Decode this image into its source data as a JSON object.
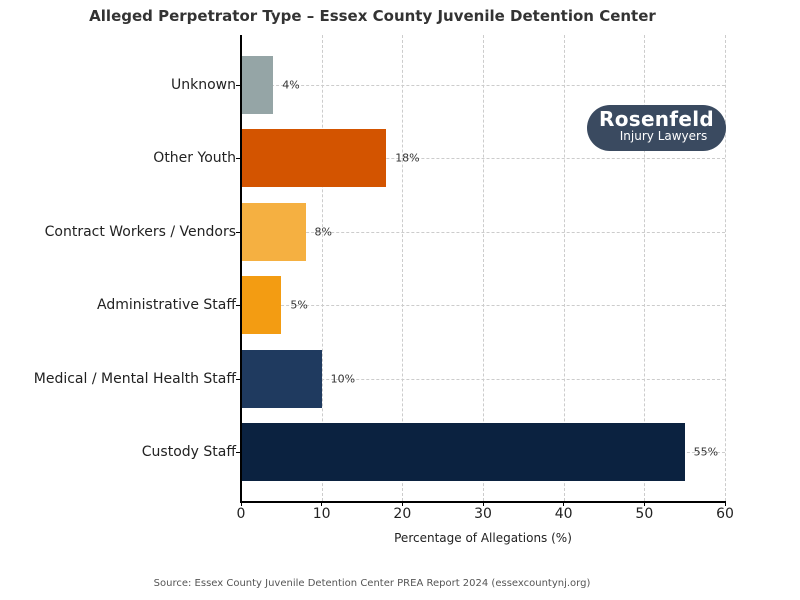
{
  "chart_data": {
    "type": "bar",
    "orientation": "horizontal",
    "title": "Alleged Perpetrator Type – Essex County Juvenile Detention Center",
    "xlabel": "Percentage of Allegations (%)",
    "ylabel": "",
    "xlim": [
      0,
      60
    ],
    "x_ticks": [
      "0",
      "10",
      "20",
      "30",
      "40",
      "50",
      "60"
    ],
    "grid": true,
    "categories": [
      "Unknown",
      "Other Youth",
      "Contract Workers / Vendors",
      "Administrative Staff",
      "Medical / Mental Health Staff",
      "Custody Staff"
    ],
    "values": [
      4,
      18,
      8,
      5,
      10,
      55
    ],
    "value_labels": [
      "4%",
      "18%",
      "8%",
      "5%",
      "10%",
      "55%"
    ],
    "colors": [
      "#95a5a6",
      "#d35400",
      "#f5b041",
      "#f39c12",
      "#1f3a5f",
      "#0b2240"
    ],
    "source": "Source: Essex County Juvenile Detention Center PREA Report 2024 (essexcountynj.org)"
  },
  "logo": {
    "line1": "Rosenfeld",
    "line2": "Injury Lawyers"
  }
}
